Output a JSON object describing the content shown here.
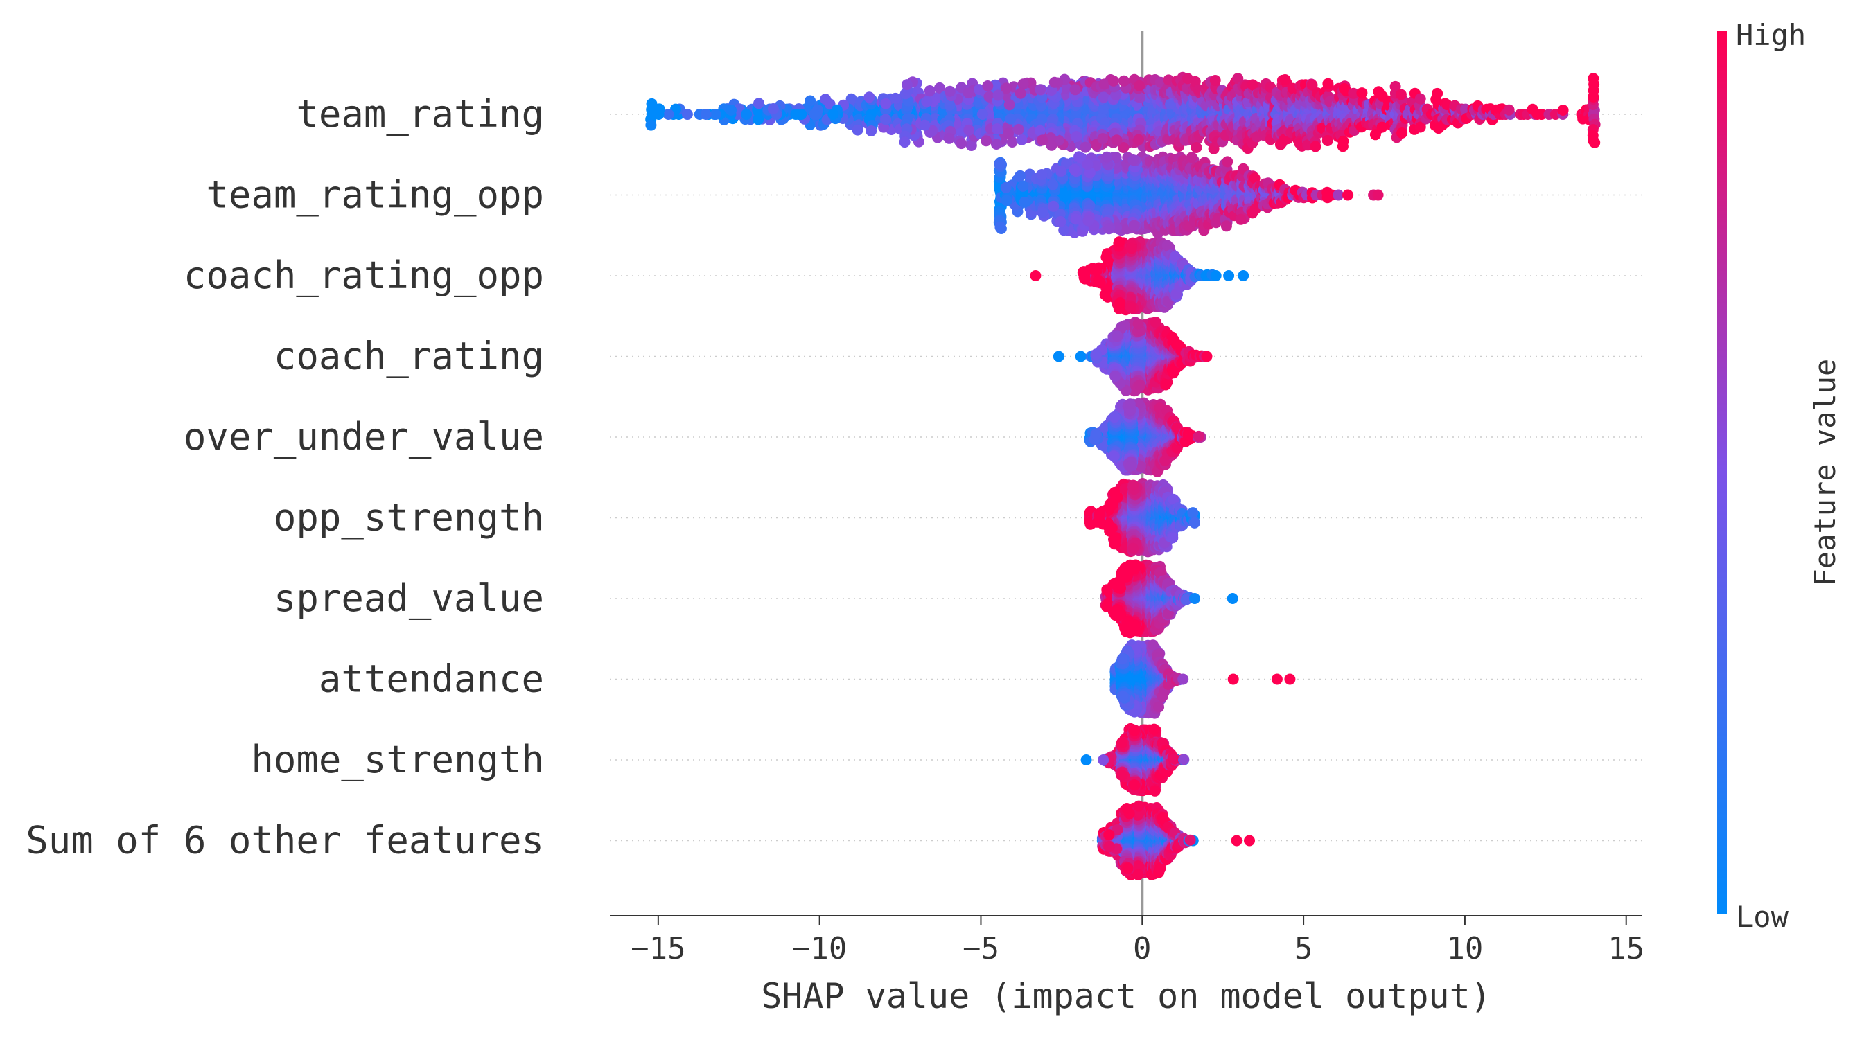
{
  "chart_data": {
    "type": "scatter",
    "subtype": "shap-beeswarm",
    "xlabel": "SHAP value (impact on model output)",
    "xlim": [
      -16.5,
      15.5
    ],
    "x_ticks": [
      -15,
      -10,
      -5,
      0,
      5,
      10,
      15
    ],
    "x_tick_labels": [
      "−15",
      "−10",
      "−5",
      "0",
      "5",
      "10",
      "15"
    ],
    "zero_line": true,
    "grid": false,
    "colormap": {
      "low": "#008afb",
      "mid": "#7c52e8",
      "high": "#ff0052"
    },
    "colorbar": {
      "title": "Feature value",
      "high_label": "High",
      "low_label": "Low",
      "placement": "right"
    },
    "features": [
      {
        "name": "team_rating",
        "min": -15.2,
        "max": 14.0,
        "spread": 5.5,
        "corr": 1,
        "max_height": 0.8,
        "outliers": []
      },
      {
        "name": "team_rating_opp",
        "min": -4.4,
        "max": 7.3,
        "spread": 2.2,
        "corr": 1,
        "max_height": 0.85,
        "outliers": []
      },
      {
        "name": "coach_rating_opp",
        "min": -1.8,
        "max": 2.3,
        "spread": 0.7,
        "corr": -1,
        "max_height": 0.75,
        "outliers": [
          {
            "x": -3.3,
            "high": true
          },
          {
            "x": 2.7,
            "high": false
          },
          {
            "x": 3.1,
            "high": false
          }
        ]
      },
      {
        "name": "coach_rating",
        "min": -2.1,
        "max": 2.0,
        "spread": 0.6,
        "corr": 1,
        "max_height": 0.75,
        "outliers": [
          {
            "x": -2.6,
            "high": false
          }
        ]
      },
      {
        "name": "over_under_value",
        "min": -1.6,
        "max": 2.4,
        "spread": 0.6,
        "corr": 1,
        "max_height": 0.75,
        "outliers": []
      },
      {
        "name": "opp_strength",
        "min": -1.6,
        "max": 1.6,
        "spread": 0.6,
        "corr": -1,
        "max_height": 0.75,
        "outliers": []
      },
      {
        "name": "spread_value",
        "min": -1.1,
        "max": 2.2,
        "spread": 0.5,
        "corr": -1,
        "max_height": 0.75,
        "outliers": [
          {
            "x": 2.8,
            "high": false
          }
        ]
      },
      {
        "name": "attendance",
        "min": -0.8,
        "max": 2.4,
        "spread": 0.4,
        "corr": 1,
        "max_height": 0.75,
        "outliers": [
          {
            "x": 2.8,
            "high": true
          },
          {
            "x": 4.2,
            "high": true
          },
          {
            "x": 4.6,
            "high": true
          }
        ]
      },
      {
        "name": "home_strength",
        "min": -1.4,
        "max": 1.3,
        "spread": 0.4,
        "corr": 0,
        "max_height": 0.7,
        "outliers": [
          {
            "x": -1.7,
            "high": false
          }
        ]
      },
      {
        "name": "Sum of 6 other features",
        "min": -1.2,
        "max": 2.4,
        "spread": 0.5,
        "corr": 0,
        "max_height": 0.75,
        "outliers": [
          {
            "x": 2.9,
            "high": true
          },
          {
            "x": 3.3,
            "high": true
          }
        ]
      }
    ]
  }
}
